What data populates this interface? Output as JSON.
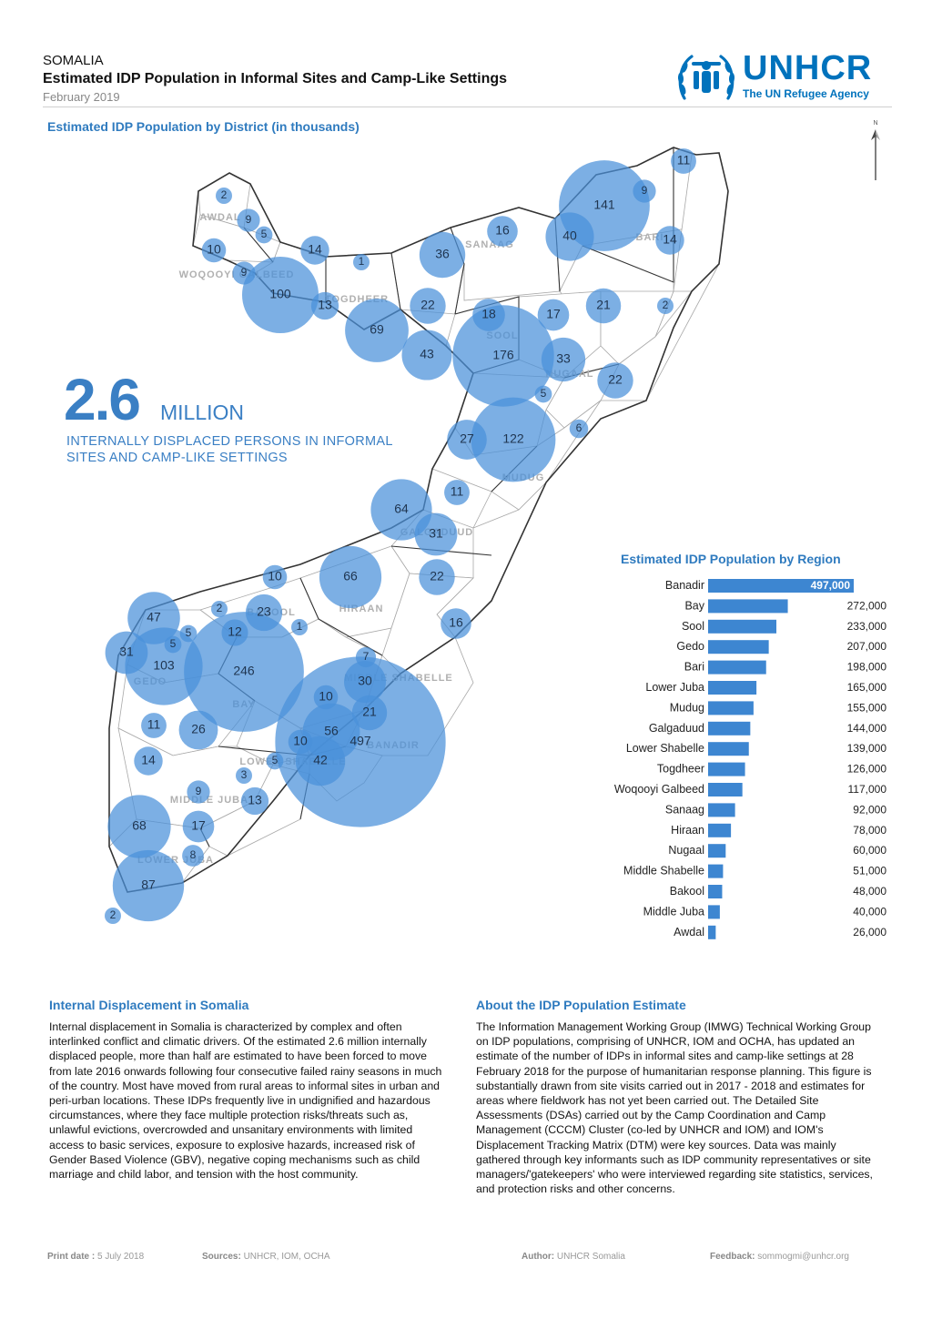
{
  "header": {
    "country": "SOMALIA",
    "title": "Estimated IDP Population in Informal Sites and Camp-Like Settings",
    "date": "February 2019"
  },
  "logo": {
    "word": "UNHCR",
    "tagline": "The UN Refugee Agency"
  },
  "map": {
    "title": "Estimated IDP Population by District (in thousands)",
    "north_label": "N",
    "headline": {
      "value": "2.6",
      "unit": "MILLION",
      "description": "INTERNALLY DISPLACED PERSONS IN INFORMAL SITES AND CAMP-LIKE SETTINGS"
    },
    "region_labels": [
      "AWDAL",
      "WOQOOYI GALBEED",
      "TOGDHEER",
      "SANAAG",
      "BARI",
      "SOOL",
      "NUGAAL",
      "MUDUG",
      "GALGADUUD",
      "HIRAAN",
      "BAKOOL",
      "GEDO",
      "BAY",
      "MIDDLE SHABELLE",
      "BANADIR",
      "LOWER SHABELLE",
      "MIDDLE JUBA",
      "LOWER JUBA"
    ],
    "bubble_values": [
      "2",
      "9",
      "5",
      "10",
      "14",
      "9",
      "100",
      "13",
      "1",
      "69",
      "36",
      "16",
      "22",
      "43",
      "18",
      "176",
      "17",
      "33",
      "141",
      "40",
      "9",
      "14",
      "11",
      "21",
      "2",
      "22",
      "5",
      "6",
      "27",
      "122",
      "11",
      "64",
      "31",
      "10",
      "66",
      "22",
      "2",
      "23",
      "12",
      "1",
      "5",
      "47",
      "5",
      "31",
      "103",
      "246",
      "16",
      "7",
      "30",
      "10",
      "21",
      "56",
      "497",
      "10",
      "42",
      "5",
      "11",
      "26",
      "14",
      "9",
      "3",
      "13",
      "68",
      "17",
      "8",
      "87",
      "2"
    ]
  },
  "chart_data": {
    "type": "bar",
    "title": "Estimated IDP Population by Region",
    "categories": [
      "Banadir",
      "Bay",
      "Sool",
      "Gedo",
      "Bari",
      "Lower Juba",
      "Mudug",
      "Galgaduud",
      "Lower Shabelle",
      "Togdheer",
      "Woqooyi Galbeed",
      "Sanaag",
      "Hiraan",
      "Nugaal",
      "Middle Shabelle",
      "Bakool",
      "Middle Juba",
      "Awdal"
    ],
    "values": [
      497000,
      272000,
      233000,
      207000,
      198000,
      165000,
      155000,
      144000,
      139000,
      126000,
      117000,
      92000,
      78000,
      60000,
      51000,
      48000,
      40000,
      26000
    ],
    "value_labels": [
      "497,000",
      "272,000",
      "233,000",
      "207,000",
      "198,000",
      "165,000",
      "155,000",
      "144,000",
      "139,000",
      "126,000",
      "117,000",
      "92,000",
      "78,000",
      "60,000",
      "51,000",
      "48,000",
      "40,000",
      "26,000"
    ],
    "orientation": "horizontal",
    "color": "#3d86d1"
  },
  "internal_displacement": {
    "title": "Internal Displacement in Somalia",
    "text": "Internal displacement in Somalia is characterized by complex and often interlinked conflict and climatic drivers. Of the estimated 2.6 million internally displaced people, more than half are estimated to have been forced to move from late 2016 onwards following four consecutive failed rainy seasons in much of the country. Most have moved from rural areas to informal sites in urban and peri-urban locations. These IDPs frequently live in undignified and hazardous circumstances, where they face multiple protection risks/threats such as, unlawful evictions, overcrowded and unsanitary environments with limited access to basic services, exposure to explosive hazards, increased risk of Gender Based Violence (GBV), negative coping mechanisms such as child marriage and child labor, and tension with the host community."
  },
  "about": {
    "title": "About the IDP Population Estimate",
    "text": "The Information Management Working Group (IMWG) Technical Working Group on IDP populations, comprising of UNHCR, IOM and OCHA, has updated an estimate of the number of IDPs in informal sites and camp-like settings at 28 February 2018 for the purpose of humanitarian response planning. This figure is substantially drawn from site visits carried out in 2017 - 2018 and estimates for areas where fieldwork has not yet been carried out. The Detailed Site Assessments (DSAs) carried out by the Camp Coordination and Camp Management (CCCM) Cluster (co-led by UNHCR and IOM) and IOM's Displacement Tracking Matrix (DTM) were key sources. Data was mainly gathered through key informants such as IDP community representatives or site managers/'gatekeepers' who were interviewed regarding site statistics, services, and protection risks and other concerns."
  },
  "footer": {
    "print_label": "Print date :",
    "print_value": "5 July 2018",
    "sources_label": "Sources:",
    "sources_value": "UNHCR, IOM, OCHA",
    "author_label": "Author:",
    "author_value": "UNHCR Somalia",
    "feedback_label": "Feedback:",
    "feedback_value": "sommogmi@unhcr.org"
  }
}
